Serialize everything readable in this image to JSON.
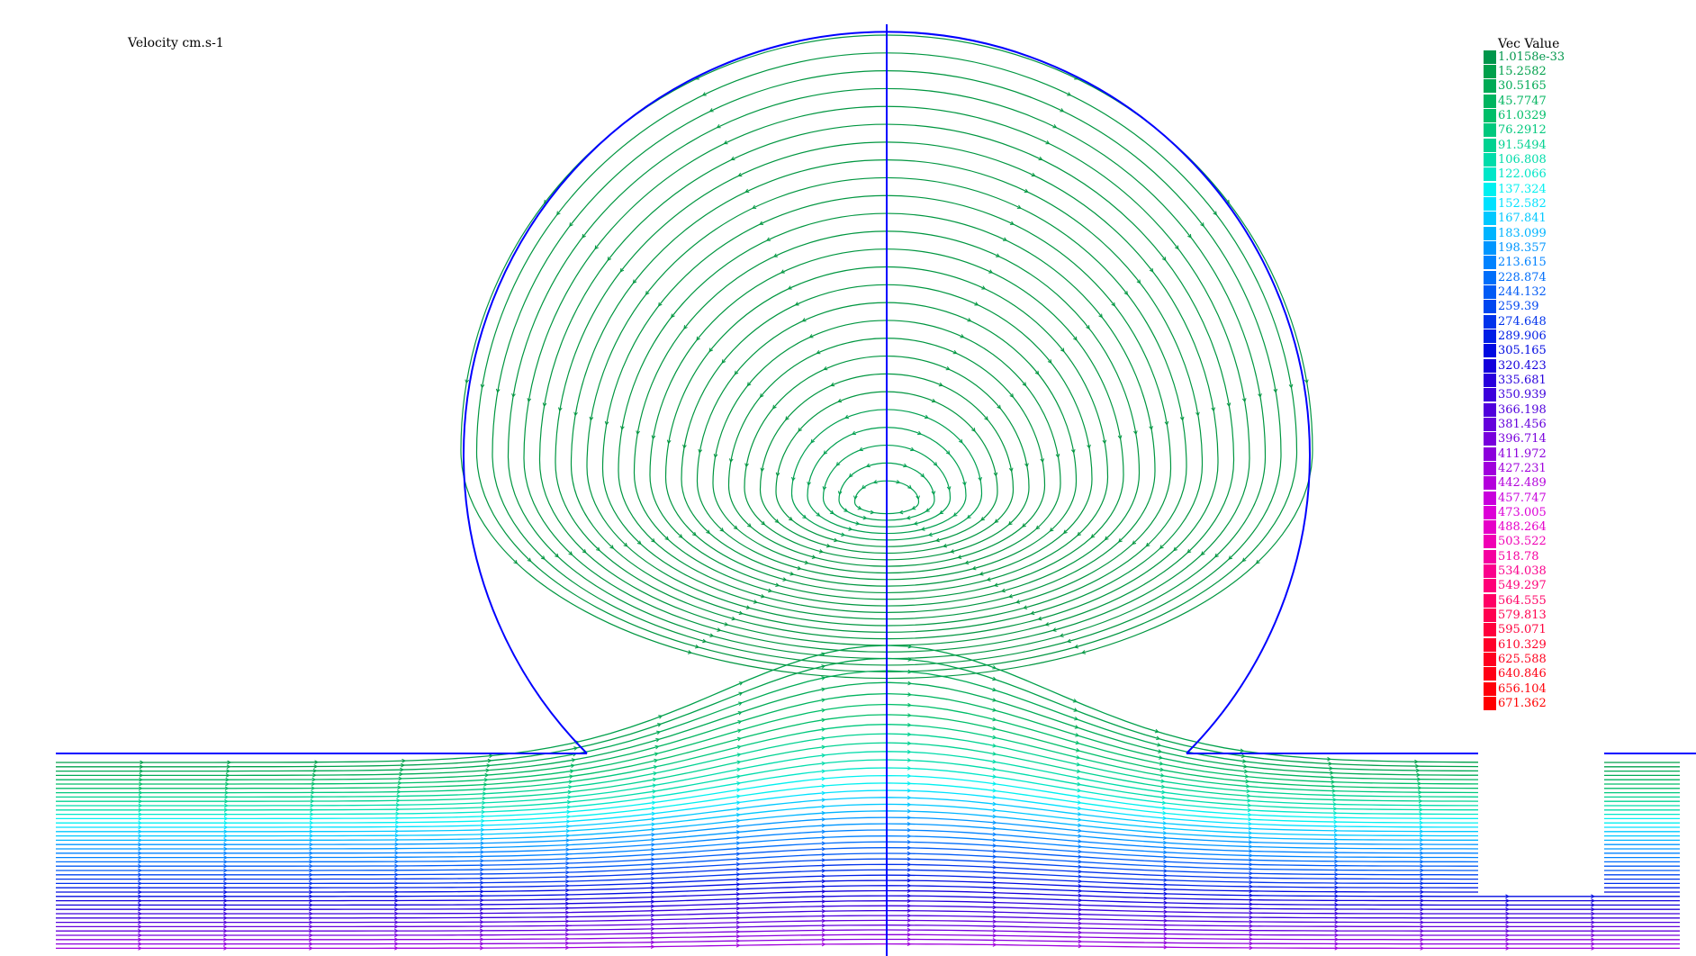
{
  "title": "Velocity cm.s-1",
  "legend": {
    "title": "Vec Value",
    "entries": [
      {
        "label": "1.0158e-33",
        "color": "#00964b"
      },
      {
        "label": "15.2582",
        "color": "#00a04b"
      },
      {
        "label": "30.5165",
        "color": "#00aa55"
      },
      {
        "label": "45.7747",
        "color": "#00b45f"
      },
      {
        "label": "61.0329",
        "color": "#00be69"
      },
      {
        "label": "76.2912",
        "color": "#00c87d"
      },
      {
        "label": "91.5494",
        "color": "#00d291"
      },
      {
        "label": "106.808",
        "color": "#00dcaa"
      },
      {
        "label": "122.066",
        "color": "#00e6c8"
      },
      {
        "label": "137.324",
        "color": "#00f0f0"
      },
      {
        "label": "152.582",
        "color": "#00e1ff"
      },
      {
        "label": "167.841",
        "color": "#00c8ff"
      },
      {
        "label": "183.099",
        "color": "#00b4ff"
      },
      {
        "label": "198.357",
        "color": "#0096ff"
      },
      {
        "label": "213.615",
        "color": "#0082ff"
      },
      {
        "label": "228.874",
        "color": "#006efa"
      },
      {
        "label": "244.132",
        "color": "#005af5"
      },
      {
        "label": "259.39",
        "color": "#0046f0"
      },
      {
        "label": "274.648",
        "color": "#0032eb"
      },
      {
        "label": "289.906",
        "color": "#001ee6"
      },
      {
        "label": "305.165",
        "color": "#000ae1"
      },
      {
        "label": "320.423",
        "color": "#1400dc"
      },
      {
        "label": "335.681",
        "color": "#2800dc"
      },
      {
        "label": "350.939",
        "color": "#3c00dc"
      },
      {
        "label": "366.198",
        "color": "#5000dc"
      },
      {
        "label": "381.456",
        "color": "#6400dc"
      },
      {
        "label": "396.714",
        "color": "#7800dc"
      },
      {
        "label": "411.972",
        "color": "#8c00dc"
      },
      {
        "label": "427.231",
        "color": "#a000dc"
      },
      {
        "label": "442.489",
        "color": "#b400dc"
      },
      {
        "label": "457.747",
        "color": "#c800dc"
      },
      {
        "label": "473.005",
        "color": "#dc00d7"
      },
      {
        "label": "488.264",
        "color": "#e600c8"
      },
      {
        "label": "503.522",
        "color": "#f000b4"
      },
      {
        "label": "518.78",
        "color": "#f500a0"
      },
      {
        "label": "534.038",
        "color": "#fa008c"
      },
      {
        "label": "549.297",
        "color": "#ff0078"
      },
      {
        "label": "564.555",
        "color": "#ff0064"
      },
      {
        "label": "579.813",
        "color": "#ff0050"
      },
      {
        "label": "595.071",
        "color": "#ff003c"
      },
      {
        "label": "610.329",
        "color": "#ff0028"
      },
      {
        "label": "625.588",
        "color": "#ff001e"
      },
      {
        "label": "640.846",
        "color": "#ff0014"
      },
      {
        "label": "656.104",
        "color": "#ff000a"
      },
      {
        "label": "671.362",
        "color": "#ff0000"
      }
    ]
  },
  "colors": {
    "background": "#ffffff",
    "boundary": "#0000ff",
    "recirculation": "#009640"
  }
}
